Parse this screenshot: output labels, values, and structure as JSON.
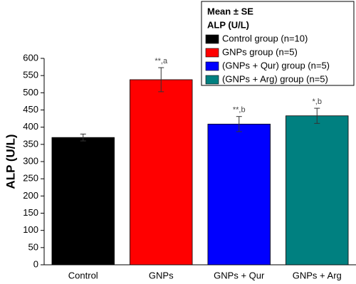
{
  "chart_data": {
    "type": "bar",
    "ylabel": "ALP (U/L)",
    "categories": [
      "Control",
      "GNPs",
      "GNPs + Qur",
      "GNPs + Arg"
    ],
    "values": [
      370,
      538,
      409,
      433
    ],
    "errors": [
      10,
      35,
      22,
      22
    ],
    "colors": [
      "#000000",
      "#ff0000",
      "#0000ff",
      "#008080"
    ],
    "annotations": [
      null,
      "**,a",
      "**,b",
      "*,b"
    ],
    "legend_title": [
      "Mean ± SE",
      "ALP (U/L)"
    ],
    "legend": [
      "Control group (n=10)",
      "GNPs group (n=5)",
      "(GNPs + Qur) group (n=5)",
      "(GNPs + Arg) group (n=5)"
    ],
    "legend_position": "upper right",
    "ylim": [
      0,
      600
    ],
    "yticks": [
      0,
      50,
      100,
      150,
      200,
      250,
      300,
      350,
      400,
      450,
      500,
      550,
      600
    ]
  }
}
